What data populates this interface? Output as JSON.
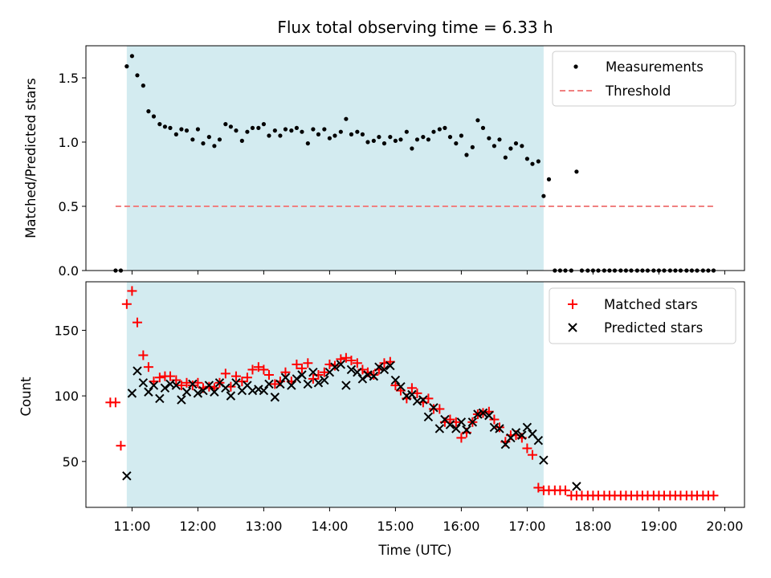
{
  "chart_data": [
    {
      "type": "scatter",
      "title": "Flux total observing time = 6.33 h",
      "ylabel": "Matched/Predicted stars",
      "xlabel": "",
      "x_unit": "hours UTC",
      "xlim": [
        10.3,
        20.3
      ],
      "ylim": [
        0,
        1.75
      ],
      "yticks": [
        0.0,
        0.5,
        1.0,
        1.5
      ],
      "ytick_labels": [
        "0.0",
        "0.5",
        "1.0",
        "1.5"
      ],
      "shaded_interval": [
        10.92,
        17.25
      ],
      "shade_color": "#d3ebf0",
      "legend": {
        "placement": "top-right",
        "entries": [
          "Measurements",
          "Threshold"
        ]
      },
      "threshold": {
        "name": "Threshold",
        "value": 0.5,
        "x_range": [
          10.75,
          19.85
        ],
        "color": "#f08080"
      },
      "series": [
        {
          "name": "Measurements",
          "color": "#000000",
          "x": [
            10.75,
            10.83,
            10.92,
            11.0,
            11.08,
            11.17,
            11.25,
            11.33,
            11.42,
            11.5,
            11.58,
            11.67,
            11.75,
            11.83,
            11.92,
            12.0,
            12.08,
            12.17,
            12.25,
            12.33,
            12.42,
            12.5,
            12.58,
            12.67,
            12.75,
            12.83,
            12.92,
            13.0,
            13.08,
            13.17,
            13.25,
            13.33,
            13.42,
            13.5,
            13.58,
            13.67,
            13.75,
            13.83,
            13.92,
            14.0,
            14.08,
            14.17,
            14.25,
            14.33,
            14.42,
            14.5,
            14.58,
            14.67,
            14.75,
            14.83,
            14.92,
            15.0,
            15.08,
            15.17,
            15.25,
            15.33,
            15.42,
            15.5,
            15.58,
            15.67,
            15.75,
            15.83,
            15.92,
            16.0,
            16.08,
            16.17,
            16.25,
            16.33,
            16.42,
            16.5,
            16.58,
            16.67,
            16.75,
            16.83,
            16.92,
            17.0,
            17.08,
            17.17,
            17.25,
            17.33,
            17.42,
            17.5,
            17.58,
            17.67,
            17.75,
            17.83,
            17.92,
            18.0,
            18.08,
            18.17,
            18.25,
            18.33,
            18.42,
            18.5,
            18.58,
            18.67,
            18.75,
            18.83,
            18.92,
            19.0,
            19.08,
            19.17,
            19.25,
            19.33,
            19.42,
            19.5,
            19.58,
            19.67,
            19.75,
            19.83
          ],
          "y": [
            0,
            0,
            1.59,
            1.67,
            1.52,
            1.44,
            1.24,
            1.2,
            1.14,
            1.12,
            1.11,
            1.06,
            1.1,
            1.09,
            1.02,
            1.1,
            0.99,
            1.04,
            0.97,
            1.02,
            1.14,
            1.12,
            1.09,
            1.01,
            1.08,
            1.11,
            1.11,
            1.14,
            1.05,
            1.09,
            1.05,
            1.1,
            1.09,
            1.11,
            1.08,
            0.99,
            1.1,
            1.06,
            1.1,
            1.03,
            1.05,
            1.08,
            1.18,
            1.06,
            1.08,
            1.06,
            1.0,
            1.01,
            1.04,
            0.99,
            1.04,
            1.01,
            1.02,
            1.08,
            0.95,
            1.02,
            1.04,
            1.02,
            1.08,
            1.1,
            1.11,
            1.04,
            0.99,
            1.05,
            0.9,
            0.96,
            1.17,
            1.11,
            1.03,
            0.97,
            1.02,
            0.88,
            0.95,
            0.99,
            0.97,
            0.87,
            0.83,
            0.85,
            0.58,
            0.71,
            0,
            0,
            0,
            0,
            0.77,
            0,
            0,
            0,
            0,
            0,
            0,
            0,
            0,
            0,
            0,
            0,
            0,
            0,
            0,
            0,
            0,
            0,
            0,
            0,
            0,
            0,
            0,
            0,
            0,
            0
          ]
        }
      ]
    },
    {
      "type": "scatter",
      "title": "",
      "xlabel": "Time (UTC)",
      "ylabel": "Count",
      "x_unit": "hours UTC",
      "xlim": [
        10.3,
        20.3
      ],
      "ylim": [
        15,
        187
      ],
      "xticks": [
        11,
        12,
        13,
        14,
        15,
        16,
        17,
        18,
        19,
        20
      ],
      "xtick_labels": [
        "11:00",
        "12:00",
        "13:00",
        "14:00",
        "15:00",
        "16:00",
        "17:00",
        "18:00",
        "19:00",
        "20:00"
      ],
      "yticks": [
        50,
        100,
        150
      ],
      "ytick_labels": [
        "50",
        "100",
        "150"
      ],
      "shaded_interval": [
        10.92,
        17.25
      ],
      "shade_color": "#d3ebf0",
      "legend": {
        "placement": "top-right",
        "entries": [
          "Matched stars",
          "Predicted stars"
        ]
      },
      "series": [
        {
          "name": "Matched stars",
          "marker": "plus",
          "color": "#ff0000",
          "x": [
            10.67,
            10.75,
            10.83,
            10.92,
            11.0,
            11.08,
            11.17,
            11.25,
            11.33,
            11.42,
            11.5,
            11.58,
            11.67,
            11.75,
            11.83,
            11.92,
            12.0,
            12.08,
            12.17,
            12.25,
            12.33,
            12.42,
            12.5,
            12.58,
            12.67,
            12.75,
            12.83,
            12.92,
            13.0,
            13.08,
            13.17,
            13.25,
            13.33,
            13.42,
            13.5,
            13.58,
            13.67,
            13.75,
            13.83,
            13.92,
            14.0,
            14.08,
            14.17,
            14.25,
            14.33,
            14.42,
            14.5,
            14.58,
            14.67,
            14.75,
            14.83,
            14.92,
            15.0,
            15.08,
            15.17,
            15.25,
            15.33,
            15.42,
            15.5,
            15.58,
            15.67,
            15.75,
            15.83,
            15.92,
            16.0,
            16.08,
            16.17,
            16.25,
            16.33,
            16.42,
            16.5,
            16.58,
            16.67,
            16.75,
            16.83,
            16.92,
            17.0,
            17.08,
            17.17,
            17.25,
            17.33,
            17.42,
            17.5,
            17.58,
            17.67,
            17.75,
            17.83,
            17.92,
            18.0,
            18.08,
            18.17,
            18.25,
            18.33,
            18.42,
            18.5,
            18.58,
            18.67,
            18.75,
            18.83,
            18.92,
            19.0,
            19.08,
            19.17,
            19.25,
            19.33,
            19.42,
            19.5,
            19.58,
            19.67,
            19.75,
            19.83
          ],
          "y": [
            95,
            95,
            62,
            170,
            180,
            156,
            131,
            122,
            111,
            114,
            115,
            115,
            112,
            108,
            110,
            108,
            110,
            106,
            107,
            106,
            110,
            117,
            107,
            115,
            111,
            114,
            120,
            122,
            120,
            116,
            109,
            111,
            118,
            111,
            124,
            121,
            125,
            113,
            116,
            118,
            124,
            123,
            128,
            129,
            127,
            125,
            120,
            118,
            116,
            120,
            125,
            126,
            108,
            104,
            98,
            106,
            102,
            95,
            98,
            90,
            90,
            80,
            82,
            80,
            68,
            72,
            80,
            86,
            87,
            88,
            82,
            76,
            65,
            70,
            70,
            68,
            60,
            55,
            30,
            28,
            28,
            28,
            28,
            28,
            24,
            24,
            24,
            24,
            24,
            24,
            24,
            24,
            24,
            24,
            24,
            24,
            24,
            24,
            24,
            24,
            24,
            24,
            24,
            24,
            24,
            24,
            24,
            24,
            24,
            24,
            24
          ]
        },
        {
          "name": "Predicted stars",
          "marker": "x",
          "color": "#000000",
          "x": [
            10.92,
            11.0,
            11.08,
            11.17,
            11.25,
            11.33,
            11.42,
            11.5,
            11.58,
            11.67,
            11.75,
            11.83,
            11.92,
            12.0,
            12.08,
            12.17,
            12.25,
            12.33,
            12.42,
            12.5,
            12.58,
            12.67,
            12.75,
            12.83,
            12.92,
            13.0,
            13.08,
            13.17,
            13.25,
            13.33,
            13.42,
            13.5,
            13.58,
            13.67,
            13.75,
            13.83,
            13.92,
            14.0,
            14.08,
            14.17,
            14.25,
            14.33,
            14.42,
            14.5,
            14.58,
            14.67,
            14.75,
            14.83,
            14.92,
            15.0,
            15.08,
            15.17,
            15.25,
            15.33,
            15.42,
            15.5,
            15.58,
            15.67,
            15.75,
            15.83,
            15.92,
            16.0,
            16.08,
            16.17,
            16.25,
            16.33,
            16.42,
            16.5,
            16.58,
            16.67,
            16.75,
            16.83,
            16.92,
            17.0,
            17.08,
            17.17,
            17.25,
            17.75
          ],
          "y": [
            39,
            102,
            119,
            110,
            103,
            108,
            98,
            106,
            109,
            108,
            97,
            103,
            109,
            102,
            104,
            108,
            103,
            110,
            106,
            100,
            110,
            104,
            108,
            104,
            105,
            104,
            109,
            99,
            109,
            114,
            108,
            113,
            116,
            109,
            118,
            110,
            112,
            118,
            122,
            124,
            108,
            120,
            118,
            113,
            116,
            115,
            122,
            120,
            123,
            112,
            107,
            100,
            101,
            96,
            97,
            84,
            91,
            75,
            82,
            78,
            75,
            80,
            74,
            80,
            86,
            87,
            85,
            76,
            75,
            63,
            68,
            72,
            70,
            76,
            71,
            66,
            51,
            31
          ]
        }
      ]
    }
  ]
}
